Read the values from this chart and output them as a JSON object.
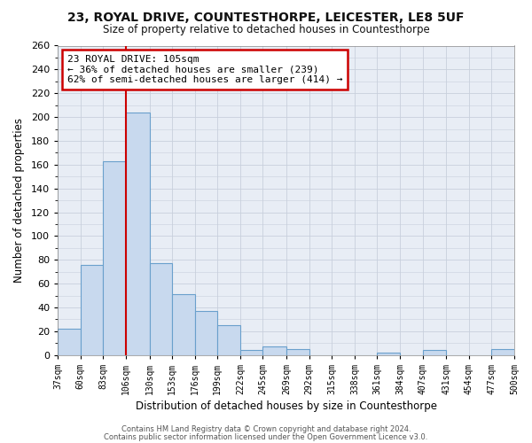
{
  "title": "23, ROYAL DRIVE, COUNTESTHORPE, LEICESTER, LE8 5UF",
  "subtitle": "Size of property relative to detached houses in Countesthorpe",
  "xlabel": "Distribution of detached houses by size in Countesthorpe",
  "ylabel": "Number of detached properties",
  "bar_color": "#c8d9ee",
  "bar_edge_color": "#6aa0cc",
  "grid_color": "#c8d0dc",
  "bg_color": "#ffffff",
  "plot_bg_color": "#e8edf5",
  "vline_x": 106,
  "vline_color": "#cc0000",
  "bin_edges": [
    37,
    60,
    83,
    106,
    130,
    153,
    176,
    199,
    222,
    245,
    269,
    292,
    315,
    338,
    361,
    384,
    407,
    431,
    454,
    477,
    500
  ],
  "bar_heights": [
    22,
    76,
    163,
    204,
    77,
    51,
    37,
    25,
    4,
    7,
    5,
    0,
    0,
    0,
    2,
    0,
    4,
    0,
    0,
    5
  ],
  "annotation_title": "23 ROYAL DRIVE: 105sqm",
  "annotation_line1": "← 36% of detached houses are smaller (239)",
  "annotation_line2": "62% of semi-detached houses are larger (414) →",
  "annotation_box_color": "white",
  "annotation_box_edge": "#cc0000",
  "ylim": [
    0,
    260
  ],
  "yticks": [
    0,
    20,
    40,
    60,
    80,
    100,
    120,
    140,
    160,
    180,
    200,
    220,
    240,
    260
  ],
  "footer1": "Contains HM Land Registry data © Crown copyright and database right 2024.",
  "footer2": "Contains public sector information licensed under the Open Government Licence v3.0."
}
